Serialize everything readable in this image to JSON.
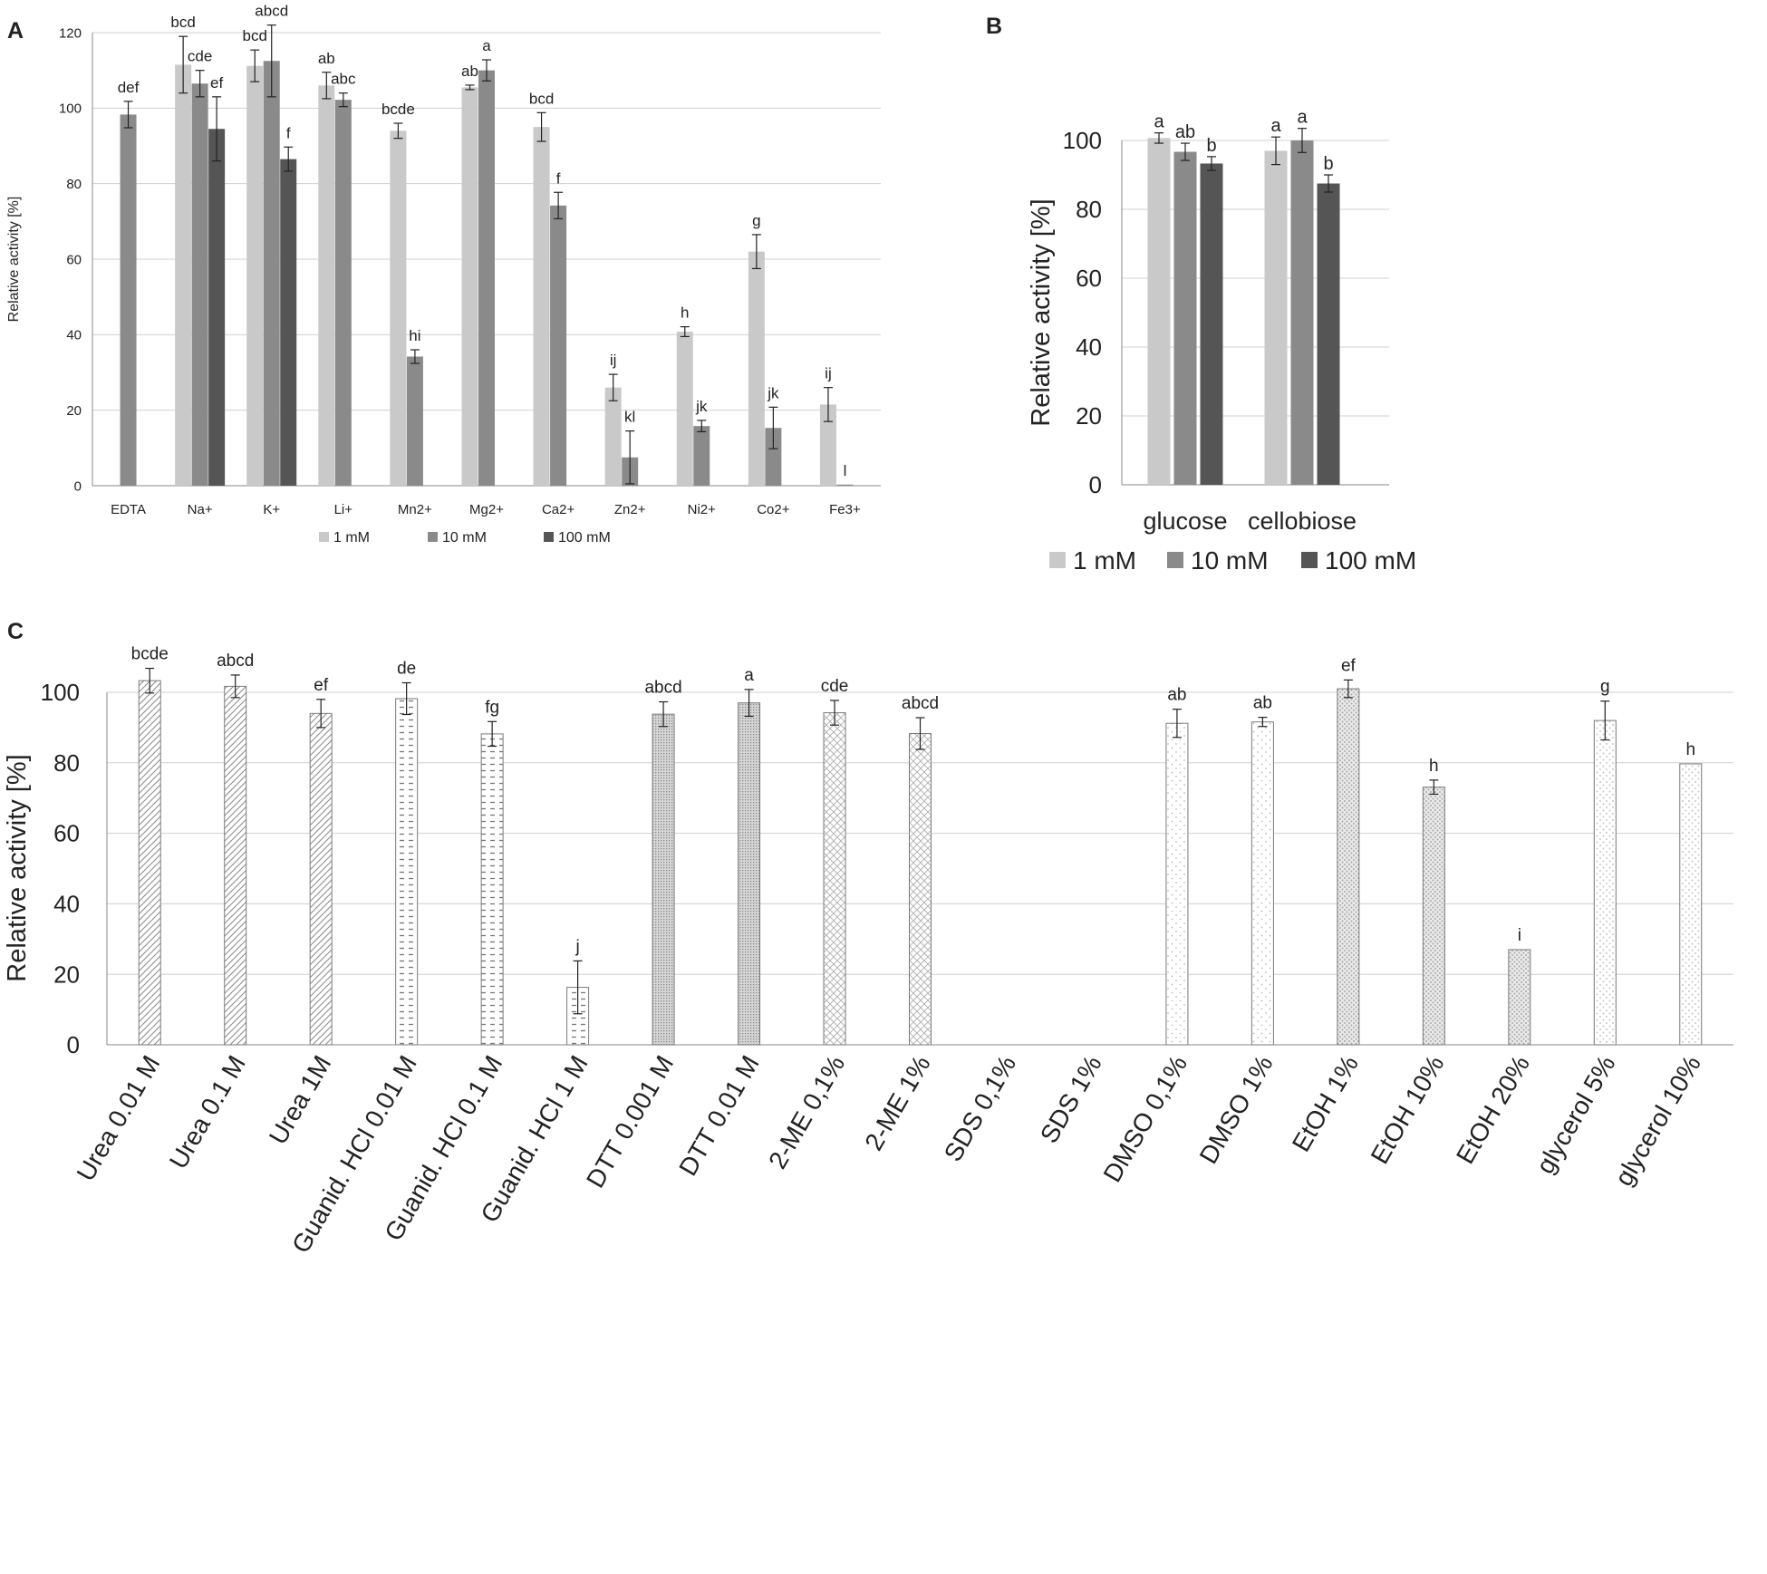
{
  "panel_labels": {
    "a": "A",
    "b": "B",
    "c": "C"
  },
  "colors": {
    "light": "#c9c9c9",
    "medium": "#8a8a8a",
    "dark": "#555555",
    "grid": "#d0d0d0",
    "axis": "#888888"
  },
  "chart_data": [
    {
      "id": "A",
      "type": "bar",
      "title": "",
      "xlabel": "",
      "ylabel": "Relative activity [%]",
      "ylim": [
        0,
        120
      ],
      "yticks": [
        "0",
        "20",
        "40",
        "60",
        "80",
        "100",
        "120"
      ],
      "grid": true,
      "legend_position": "bottom",
      "categories": [
        "EDTA",
        "Na+",
        "K+",
        "Li+",
        "Mn2+",
        "Mg2+",
        "Ca2+",
        "Zn2+",
        "Ni2+",
        "Co2+",
        "Fe3+"
      ],
      "series": [
        {
          "name": "1 mM",
          "values": [
            null,
            111.5,
            111.2,
            106,
            94,
            105.5,
            95,
            26,
            40.8,
            62,
            21.5
          ],
          "errors": [
            0,
            7.5,
            4.2,
            3.5,
            2,
            0.6,
            3.8,
            3.5,
            1.3,
            4.5,
            4.5
          ],
          "labels": [
            "",
            "bcd",
            "bcd",
            "ab",
            "bcde",
            "ab",
            "bcd",
            "ij",
            "h",
            "g",
            "ij"
          ]
        },
        {
          "name": "10 mM",
          "values": [
            98.3,
            106.5,
            112.5,
            102.2,
            34.2,
            110,
            74.2,
            7.5,
            15.8,
            15.3,
            0.3
          ],
          "errors": [
            3.5,
            3.5,
            9.5,
            1.8,
            1.8,
            2.8,
            3.5,
            7,
            1.5,
            5.5,
            0
          ],
          "labels": [
            "def",
            "cde",
            "abcd",
            "abc",
            "hi",
            "a",
            "f",
            "kl",
            "jk",
            "jk",
            "l"
          ]
        },
        {
          "name": "100 mM",
          "values": [
            null,
            94.5,
            86.5,
            null,
            null,
            null,
            null,
            null,
            null,
            null,
            null
          ],
          "errors": [
            0,
            8.5,
            3.2,
            0,
            0,
            0,
            0,
            0,
            0,
            0,
            0
          ],
          "labels": [
            "",
            "ef",
            "f",
            "",
            "",
            "",
            "",
            "",
            "",
            "",
            ""
          ]
        }
      ]
    },
    {
      "id": "B",
      "type": "bar",
      "title": "",
      "xlabel": "",
      "ylabel": "Relative activity [%]",
      "ylim": [
        0,
        100
      ],
      "yticks": [
        "0",
        "20",
        "40",
        "60",
        "80",
        "100"
      ],
      "grid": true,
      "legend_position": "bottom",
      "categories": [
        "glucose",
        "cellobiose"
      ],
      "series": [
        {
          "name": "1 mM",
          "values": [
            100.7,
            97
          ],
          "errors": [
            1.5,
            4
          ],
          "labels": [
            "a",
            "a"
          ]
        },
        {
          "name": "10 mM",
          "values": [
            96.7,
            100
          ],
          "errors": [
            2.5,
            3.5
          ],
          "labels": [
            "ab",
            "a"
          ]
        },
        {
          "name": "100 mM",
          "values": [
            93.3,
            87.5
          ],
          "errors": [
            2,
            2.5
          ],
          "labels": [
            "b",
            "b"
          ]
        }
      ]
    },
    {
      "id": "C",
      "type": "bar",
      "title": "",
      "xlabel": "",
      "ylabel": "Relative activity [%]",
      "ylim": [
        0,
        100
      ],
      "yticks": [
        "0",
        "20",
        "40",
        "60",
        "80",
        "100"
      ],
      "grid": true,
      "categories": [
        "Urea 0.01 M",
        "Urea 0.1 M",
        "Urea 1M",
        "Guanid. HCl 0.01 M",
        "Guanid. HCl 0.1 M",
        "Guanid. HCl 1 M",
        "DTT 0.001 M",
        "DTT 0.01 M",
        "2-ME 0,1%",
        "2-ME 1%",
        "SDS 0,1%",
        "SDS 1%",
        "DMSO 0,1%",
        "DMSO 1%",
        "EtOH 1%",
        "EtOH 10%",
        "EtOH 20%",
        "glycerol 5%",
        "glycerol 10%"
      ],
      "values": [
        103.3,
        101.7,
        94,
        98.2,
        88.2,
        16.3,
        93.8,
        97,
        94.2,
        88.3,
        null,
        null,
        91.2,
        91.6,
        101,
        73.1,
        27,
        92,
        79.7
      ],
      "errors": [
        3.5,
        3.2,
        4,
        4.5,
        3.5,
        7.5,
        3.5,
        3.8,
        3.5,
        4.5,
        0,
        0,
        4,
        1.3,
        2.5,
        2,
        0,
        5.5,
        0
      ],
      "labels": [
        "bcde",
        "abcd",
        "ef",
        "de",
        "fg",
        "j",
        "abcd",
        "a",
        "cde",
        "abcd",
        "",
        "",
        "ab",
        "ab",
        "ef",
        "h",
        "i",
        "g",
        "h"
      ],
      "patterns": [
        "diagonal",
        "diagonal",
        "diagonal",
        "dashes",
        "dashes",
        "dashes",
        "fine-dots",
        "fine-dots",
        "crosshatch",
        "crosshatch",
        "none",
        "none",
        "sparse-dots",
        "sparse-dots",
        "dense-dots",
        "dense-dots",
        "dense-dots",
        "light-dots",
        "light-dots"
      ]
    }
  ]
}
